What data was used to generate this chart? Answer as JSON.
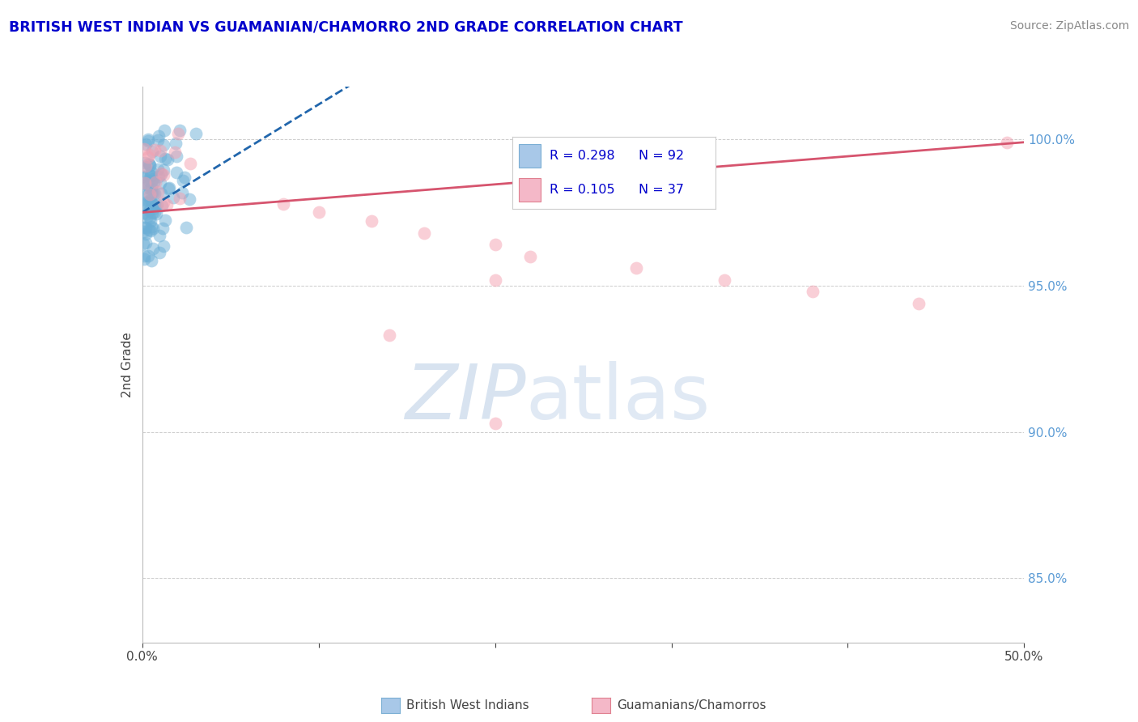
{
  "title": "BRITISH WEST INDIAN VS GUAMANIAN/CHAMORRO 2ND GRADE CORRELATION CHART",
  "source_text": "Source: ZipAtlas.com",
  "ylabel": "2nd Grade",
  "xlim": [
    0.0,
    0.5
  ],
  "ylim": [
    0.828,
    1.018
  ],
  "xtick_positions": [
    0.0,
    0.1,
    0.2,
    0.3,
    0.4,
    0.5
  ],
  "xticklabels": [
    "0.0%",
    "",
    "",
    "",
    "",
    "50.0%"
  ],
  "ytick_positions": [
    0.85,
    0.9,
    0.95,
    1.0
  ],
  "yticklabels": [
    "85.0%",
    "90.0%",
    "95.0%",
    "100.0%"
  ],
  "blue_color": "#6baed6",
  "pink_color": "#f4a0b0",
  "blue_line_color": "#2166ac",
  "pink_line_color": "#d6546e",
  "legend_blue_fill": "#a8c8e8",
  "legend_pink_fill": "#f4b8c8",
  "watermark_zip_color": "#b8cce4",
  "watermark_atlas_color": "#c8d8ec",
  "title_color": "#0000cc",
  "tick_label_color": "#5b9bd5",
  "grid_color": "#cccccc",
  "source_color": "#888888",
  "legend_text_color": "#0000cc"
}
